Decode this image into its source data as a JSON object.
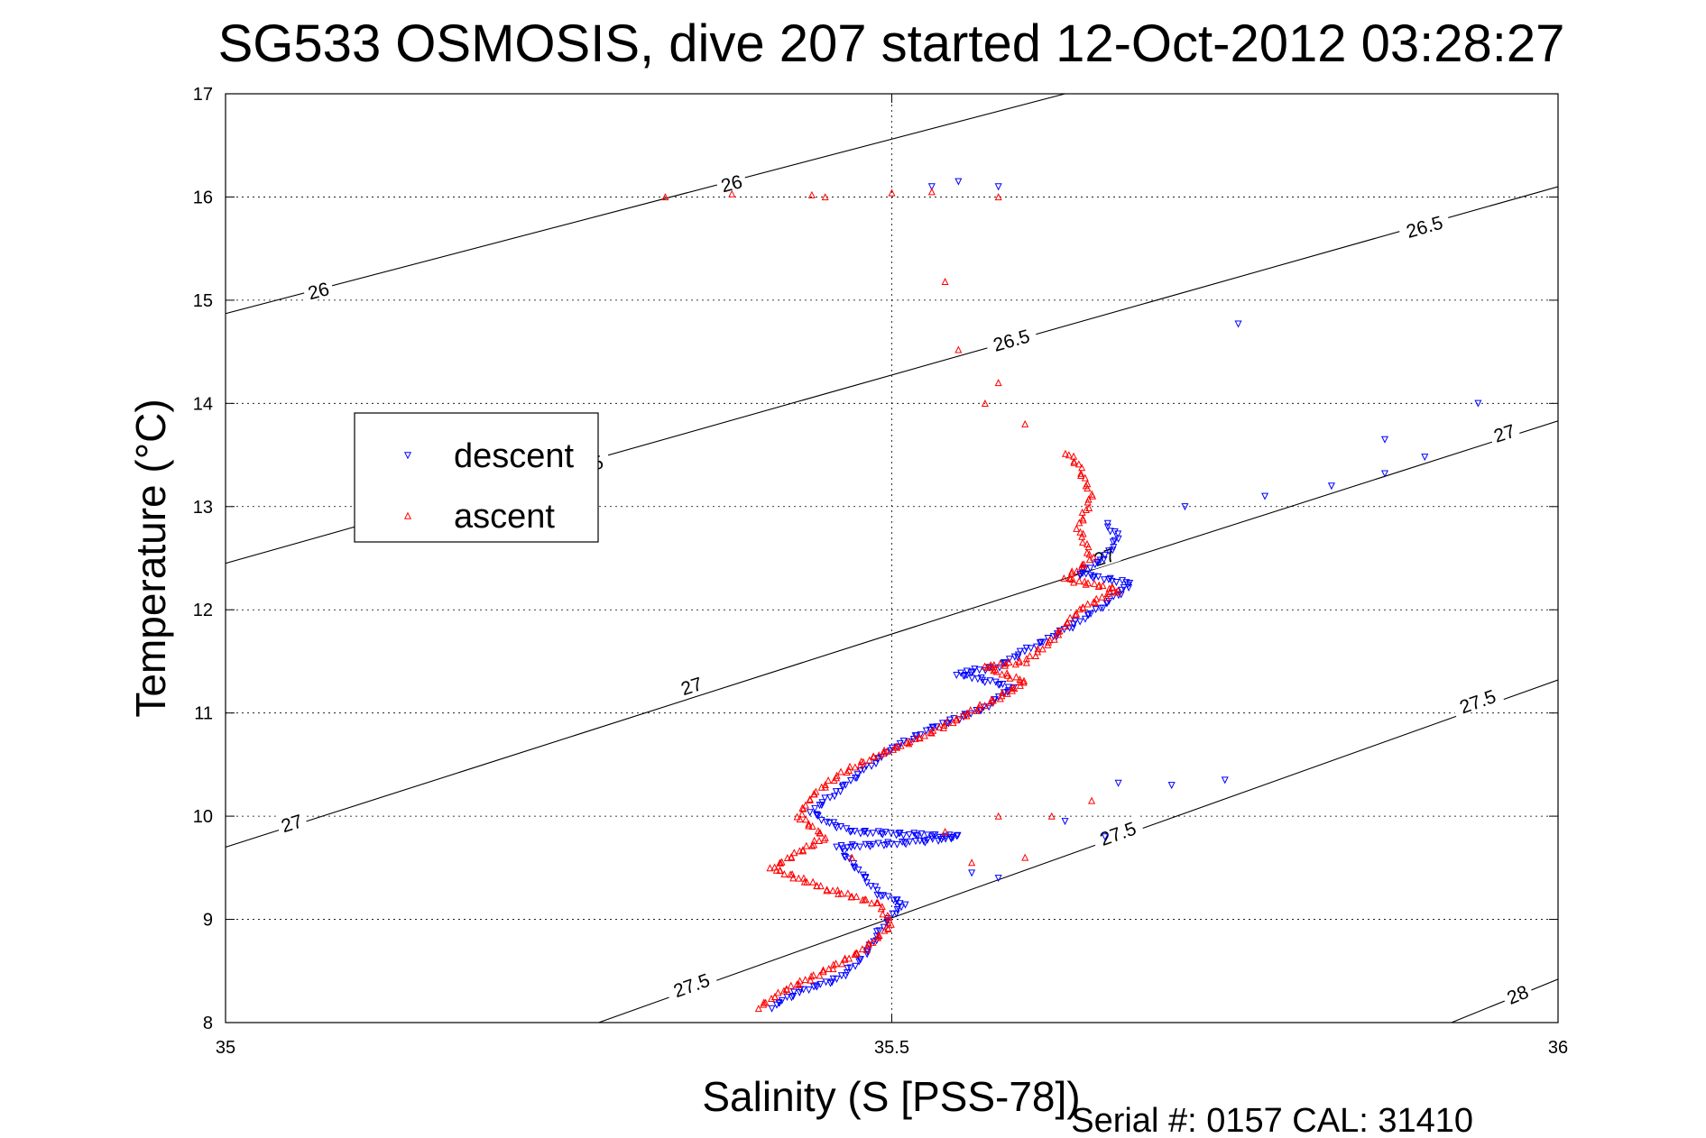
{
  "chart_data": {
    "type": "scatter",
    "title": "SG533 OSMOSIS, dive 207 started 12-Oct-2012 03:28:27",
    "xlabel": "Salinity (S [PSS-78])",
    "ylabel": "Temperature (°C)",
    "xlim": [
      35,
      36
    ],
    "ylim": [
      8,
      17
    ],
    "x_ticks": [
      "35",
      "35.5",
      "36"
    ],
    "x_tick_values": [
      35,
      35.5,
      36
    ],
    "y_ticks": [
      "8",
      "9",
      "10",
      "11",
      "12",
      "13",
      "14",
      "15",
      "16",
      "17"
    ],
    "y_tick_values": [
      8,
      9,
      10,
      11,
      12,
      13,
      14,
      15,
      16,
      17
    ],
    "grid": true,
    "legend_position": "left",
    "footer": "Serial #: 0157  CAL: 31410",
    "density_contours": [
      {
        "label": "26",
        "points": [
          [
            35,
            14.87
          ],
          [
            35.63,
            17.0
          ]
        ],
        "labels_at": [
          [
            35.07,
            15.08
          ],
          [
            35.38,
            16.12
          ]
        ]
      },
      {
        "label": "26.5",
        "points": [
          [
            35,
            12.45
          ],
          [
            36,
            16.1
          ]
        ],
        "labels_at": [
          [
            35.27,
            13.38
          ],
          [
            35.59,
            14.6
          ],
          [
            35.9,
            15.7
          ]
        ]
      },
      {
        "label": "27",
        "points": [
          [
            35,
            9.7
          ],
          [
            36,
            13.83
          ]
        ],
        "labels_at": [
          [
            35.05,
            9.92
          ],
          [
            35.35,
            11.25
          ],
          [
            35.66,
            12.5
          ],
          [
            35.96,
            13.7
          ]
        ]
      },
      {
        "label": "27.5",
        "points": [
          [
            35.28,
            8.0
          ],
          [
            36,
            11.32
          ]
        ],
        "labels_at": [
          [
            35.35,
            8.35
          ],
          [
            35.67,
            9.82
          ],
          [
            35.94,
            11.1
          ]
        ]
      },
      {
        "label": "28",
        "points": [
          [
            35.92,
            8.0
          ],
          [
            36,
            8.42
          ]
        ],
        "labels_at": [
          [
            35.97,
            8.26
          ]
        ]
      }
    ],
    "series": [
      {
        "name": "descent",
        "color": "#0000ff",
        "marker": "triangle-down",
        "path": [
          [
            35.41,
            8.15
          ],
          [
            35.43,
            8.3
          ],
          [
            35.46,
            8.42
          ],
          [
            35.48,
            8.65
          ],
          [
            35.49,
            8.87
          ],
          [
            35.5,
            9.05
          ],
          [
            35.51,
            9.15
          ],
          [
            35.49,
            9.25
          ],
          [
            35.47,
            9.55
          ],
          [
            35.46,
            9.7
          ],
          [
            35.52,
            9.75
          ],
          [
            35.55,
            9.8
          ],
          [
            35.47,
            9.85
          ],
          [
            35.45,
            9.95
          ],
          [
            35.44,
            10.05
          ],
          [
            35.46,
            10.25
          ],
          [
            35.48,
            10.45
          ],
          [
            35.5,
            10.65
          ],
          [
            35.53,
            10.85
          ],
          [
            35.57,
            11.05
          ],
          [
            35.59,
            11.25
          ],
          [
            35.55,
            11.38
          ],
          [
            35.58,
            11.45
          ],
          [
            35.6,
            11.6
          ],
          [
            35.63,
            11.8
          ],
          [
            35.66,
            12.05
          ],
          [
            35.68,
            12.25
          ],
          [
            35.64,
            12.35
          ],
          [
            35.66,
            12.5
          ],
          [
            35.67,
            12.7
          ],
          [
            35.66,
            12.85
          ]
        ],
        "extra_points": [
          [
            35.72,
            13.0
          ],
          [
            35.78,
            13.1
          ],
          [
            35.83,
            13.2
          ],
          [
            35.87,
            13.32
          ],
          [
            35.9,
            13.48
          ],
          [
            35.87,
            13.65
          ],
          [
            35.94,
            14.0
          ],
          [
            35.76,
            14.77
          ],
          [
            35.71,
            10.3
          ],
          [
            35.75,
            10.35
          ],
          [
            35.67,
            10.32
          ],
          [
            35.63,
            9.95
          ],
          [
            35.66,
            9.8
          ],
          [
            35.56,
            9.45
          ],
          [
            35.58,
            9.4
          ],
          [
            35.53,
            16.1
          ],
          [
            35.58,
            16.1
          ],
          [
            35.55,
            16.15
          ]
        ]
      },
      {
        "name": "ascent",
        "color": "#ff0000",
        "marker": "triangle-up",
        "path": [
          [
            35.4,
            8.15
          ],
          [
            35.42,
            8.32
          ],
          [
            35.45,
            8.5
          ],
          [
            35.48,
            8.72
          ],
          [
            35.5,
            8.95
          ],
          [
            35.49,
            9.15
          ],
          [
            35.45,
            9.3
          ],
          [
            35.41,
            9.5
          ],
          [
            35.43,
            9.65
          ],
          [
            35.45,
            9.8
          ],
          [
            35.43,
            10.0
          ],
          [
            35.44,
            10.2
          ],
          [
            35.46,
            10.4
          ],
          [
            35.49,
            10.6
          ],
          [
            35.52,
            10.75
          ],
          [
            35.55,
            10.95
          ],
          [
            35.58,
            11.15
          ],
          [
            35.6,
            11.3
          ],
          [
            35.57,
            11.45
          ],
          [
            35.6,
            11.5
          ],
          [
            35.62,
            11.7
          ],
          [
            35.64,
            12.0
          ],
          [
            35.67,
            12.2
          ],
          [
            35.63,
            12.3
          ],
          [
            35.65,
            12.5
          ],
          [
            35.64,
            12.8
          ],
          [
            35.65,
            13.1
          ],
          [
            35.64,
            13.4
          ],
          [
            35.63,
            13.55
          ]
        ],
        "extra_points": [
          [
            35.62,
            10.0
          ],
          [
            35.65,
            10.15
          ],
          [
            35.58,
            10.0
          ],
          [
            35.54,
            9.85
          ],
          [
            35.6,
            9.6
          ],
          [
            35.56,
            9.55
          ],
          [
            35.47,
            9.6
          ],
          [
            35.6,
            13.8
          ],
          [
            35.57,
            14.0
          ],
          [
            35.58,
            14.2
          ],
          [
            35.55,
            14.52
          ],
          [
            35.54,
            15.18
          ],
          [
            35.33,
            16.0
          ],
          [
            35.38,
            16.03
          ],
          [
            35.44,
            16.02
          ],
          [
            35.5,
            16.04
          ],
          [
            35.53,
            16.05
          ],
          [
            35.58,
            16.0
          ],
          [
            35.45,
            16.0
          ]
        ]
      }
    ]
  }
}
